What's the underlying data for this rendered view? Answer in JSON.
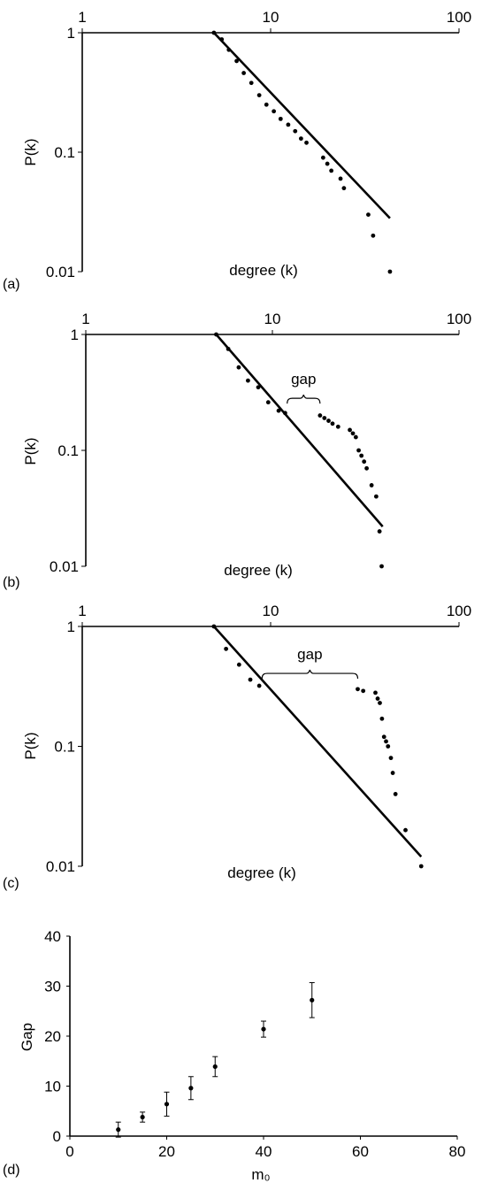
{
  "chart_data": [
    {
      "type": "scatter",
      "panel_label": "(a)",
      "xscale": "log",
      "yscale": "log",
      "xlim": [
        1,
        100
      ],
      "ylim": [
        0.01,
        1
      ],
      "x_ticks": [
        "1",
        "10",
        "100"
      ],
      "y_ticks": [
        "1",
        "0.1",
        "0.01"
      ],
      "xlabel": "degree (k)",
      "ylabel": "P(k)",
      "annotation": "",
      "fit_line": {
        "x": [
          5,
          43
        ],
        "y": [
          1,
          0.028
        ]
      },
      "points": [
        [
          5,
          1
        ],
        [
          5.5,
          0.88
        ],
        [
          6,
          0.72
        ],
        [
          6.6,
          0.58
        ],
        [
          7.2,
          0.46
        ],
        [
          7.9,
          0.38
        ],
        [
          8.7,
          0.3
        ],
        [
          9.5,
          0.25
        ],
        [
          10.4,
          0.22
        ],
        [
          11.3,
          0.19
        ],
        [
          12.4,
          0.17
        ],
        [
          13.5,
          0.15
        ],
        [
          14.5,
          0.13
        ],
        [
          15.5,
          0.12
        ],
        [
          19,
          0.09
        ],
        [
          20,
          0.08
        ],
        [
          21,
          0.07
        ],
        [
          23.5,
          0.06
        ],
        [
          24.5,
          0.05
        ],
        [
          33,
          0.03
        ],
        [
          35,
          0.02
        ],
        [
          43,
          0.01
        ]
      ]
    },
    {
      "type": "scatter",
      "panel_label": "(b)",
      "xscale": "log",
      "yscale": "log",
      "xlim": [
        1,
        100
      ],
      "ylim": [
        0.01,
        1
      ],
      "x_ticks": [
        "1",
        "10",
        "100"
      ],
      "y_ticks": [
        "1",
        "0.1",
        "0.01"
      ],
      "xlabel": "degree (k)",
      "ylabel": "P(k)",
      "annotation": "gap",
      "gap_range": [
        12,
        18
      ],
      "fit_line": {
        "x": [
          5,
          39
        ],
        "y": [
          1,
          0.022
        ]
      },
      "points": [
        [
          5,
          1
        ],
        [
          5.8,
          0.75
        ],
        [
          6.6,
          0.52
        ],
        [
          7.4,
          0.4
        ],
        [
          8.4,
          0.35
        ],
        [
          9.5,
          0.26
        ],
        [
          10.8,
          0.22
        ],
        [
          11.7,
          0.21
        ],
        [
          18,
          0.2
        ],
        [
          19,
          0.19
        ],
        [
          20,
          0.18
        ],
        [
          21,
          0.17
        ],
        [
          22.5,
          0.16
        ],
        [
          26,
          0.15
        ],
        [
          27,
          0.14
        ],
        [
          28,
          0.13
        ],
        [
          29,
          0.1
        ],
        [
          30,
          0.09
        ],
        [
          31,
          0.08
        ],
        [
          32,
          0.07
        ],
        [
          34,
          0.05
        ],
        [
          36,
          0.04
        ],
        [
          37.5,
          0.02
        ],
        [
          38.5,
          0.01
        ]
      ]
    },
    {
      "type": "scatter",
      "panel_label": "(c)",
      "xscale": "log",
      "yscale": "log",
      "xlim": [
        1,
        100
      ],
      "ylim": [
        0.01,
        1
      ],
      "x_ticks": [
        "1",
        "10",
        "100"
      ],
      "y_ticks": [
        "1",
        "0.1",
        "0.01"
      ],
      "xlabel": "degree (k)",
      "ylabel": "P(k)",
      "annotation": "gap",
      "gap_range": [
        9,
        29
      ],
      "fit_line": {
        "x": [
          5,
          63
        ],
        "y": [
          1,
          0.012
        ]
      },
      "points": [
        [
          5,
          1
        ],
        [
          5.8,
          0.65
        ],
        [
          6.8,
          0.48
        ],
        [
          7.8,
          0.36
        ],
        [
          8.7,
          0.32
        ],
        [
          29,
          0.3
        ],
        [
          31,
          0.29
        ],
        [
          36,
          0.28
        ],
        [
          37,
          0.25
        ],
        [
          38,
          0.23
        ],
        [
          39,
          0.17
        ],
        [
          40,
          0.12
        ],
        [
          41,
          0.11
        ],
        [
          42,
          0.1
        ],
        [
          43.5,
          0.08
        ],
        [
          44.5,
          0.06
        ],
        [
          46,
          0.04
        ],
        [
          52,
          0.02
        ],
        [
          63,
          0.01
        ]
      ]
    },
    {
      "type": "scatter",
      "panel_label": "(d)",
      "xscale": "linear",
      "yscale": "linear",
      "xlim": [
        0,
        80
      ],
      "ylim": [
        0,
        40
      ],
      "x_ticks": [
        "0",
        "20",
        "40",
        "60",
        "80"
      ],
      "y_ticks": [
        "0",
        "10",
        "20",
        "30",
        "40"
      ],
      "xlabel": "m₀",
      "ylabel": "Gap",
      "series": [
        {
          "x": [
            10,
            15,
            20,
            25,
            30,
            40,
            50
          ],
          "y": [
            1.3,
            3.8,
            6.4,
            9.6,
            13.9,
            21.4,
            27.2
          ],
          "error": [
            1.5,
            1,
            2.4,
            2.3,
            2,
            1.6,
            3.5
          ]
        }
      ]
    }
  ]
}
